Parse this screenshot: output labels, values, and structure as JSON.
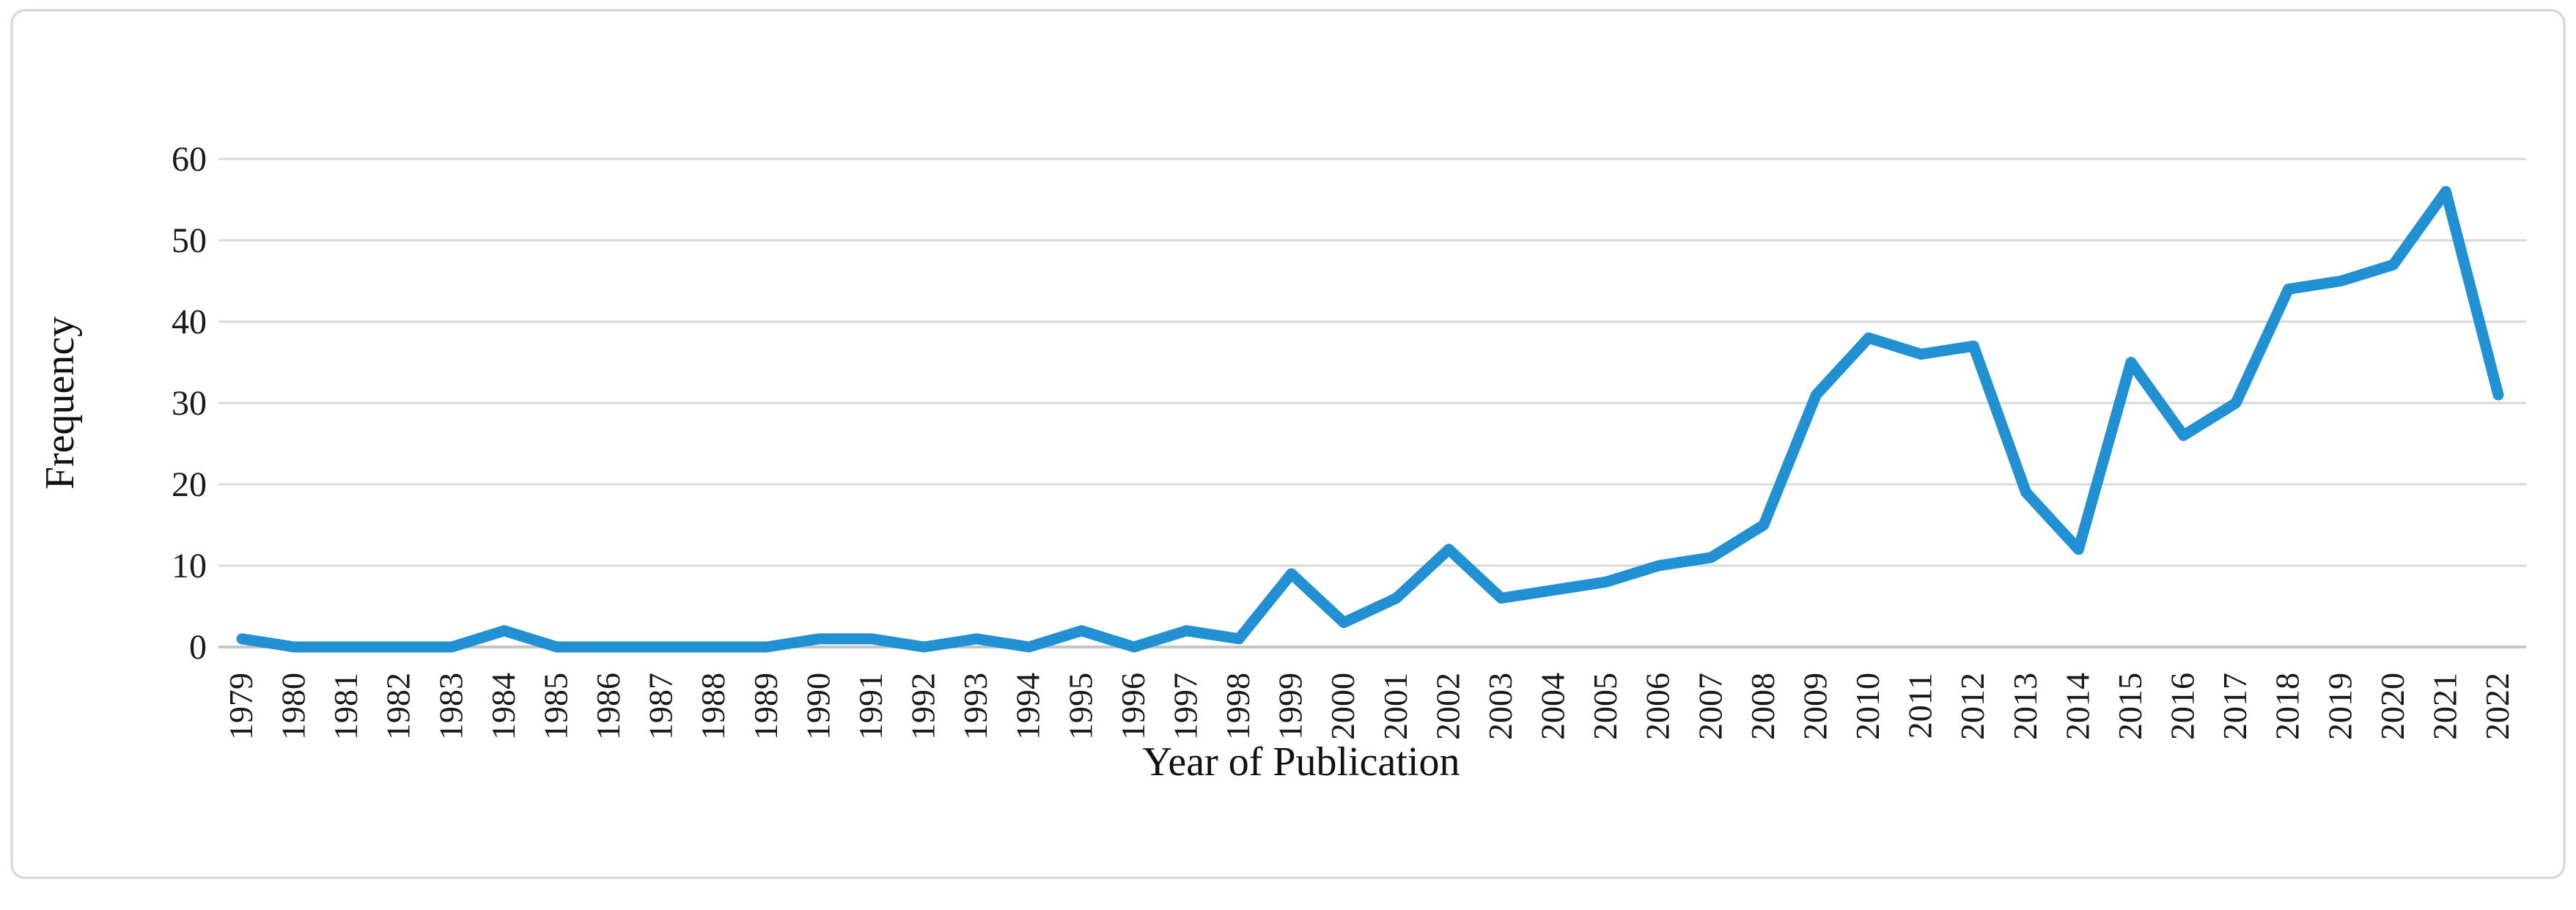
{
  "chart_data": {
    "type": "line",
    "title": "",
    "xlabel": "Year of Publication",
    "ylabel": "Frequency",
    "x": [
      1979,
      1980,
      1981,
      1982,
      1983,
      1984,
      1985,
      1986,
      1987,
      1988,
      1989,
      1990,
      1991,
      1992,
      1993,
      1994,
      1995,
      1996,
      1997,
      1998,
      1999,
      2000,
      2001,
      2002,
      2003,
      2004,
      2005,
      2006,
      2007,
      2008,
      2009,
      2010,
      2011,
      2012,
      2013,
      2014,
      2015,
      2016,
      2017,
      2018,
      2019,
      2020,
      2021,
      2022
    ],
    "series": [
      {
        "name": "Frequency",
        "values": [
          1,
          0,
          0,
          0,
          0,
          2,
          0,
          0,
          0,
          0,
          0,
          1,
          1,
          0,
          1,
          0,
          2,
          0,
          2,
          1,
          9,
          3,
          6,
          12,
          6,
          7,
          8,
          10,
          11,
          15,
          31,
          38,
          36,
          37,
          19,
          12,
          35,
          26,
          30,
          44,
          45,
          47,
          56,
          31
        ]
      }
    ],
    "ylim": [
      0,
      60
    ],
    "ytick_step": 10,
    "yticks": [
      "0",
      "10",
      "20",
      "30",
      "40",
      "50",
      "60"
    ],
    "grid": "horizontal",
    "legend": "none",
    "colors": {
      "line": "#2191d4",
      "gridline": "#d9d9d9",
      "axis_line": "#c6c6c6",
      "text": "#1a1a1a",
      "border": "#d5d5d5",
      "background": "#ffffff"
    }
  }
}
